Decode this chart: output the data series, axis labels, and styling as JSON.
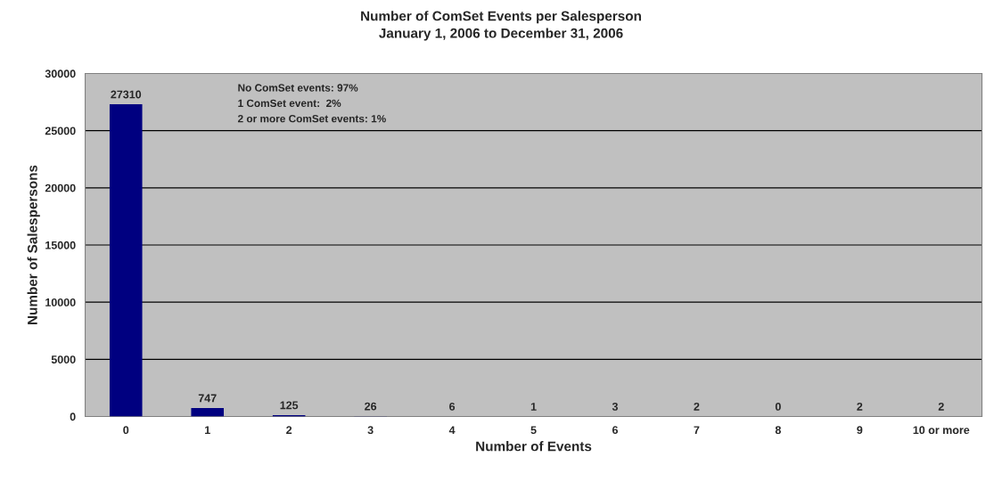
{
  "chart_data": {
    "type": "bar",
    "title": "Number of ComSet Events per Salesperson",
    "subtitle": "January 1, 2006 to December 31, 2006",
    "xlabel": "Number of Events",
    "ylabel": "Number of Salespersons",
    "categories": [
      "0",
      "1",
      "2",
      "3",
      "4",
      "5",
      "6",
      "7",
      "8",
      "9",
      "10 or more"
    ],
    "values": [
      27310,
      747,
      125,
      26,
      6,
      1,
      3,
      2,
      0,
      2,
      2
    ],
    "color": "#000080",
    "ylim": [
      0,
      30000
    ],
    "yticks": [
      0,
      5000,
      10000,
      15000,
      20000,
      25000,
      30000
    ],
    "grid": "y",
    "data_labels": true,
    "annotations": [
      "No ComSet events: 97%",
      "1 ComSet event:  2%",
      "2 or more ComSet events: 1%"
    ]
  }
}
